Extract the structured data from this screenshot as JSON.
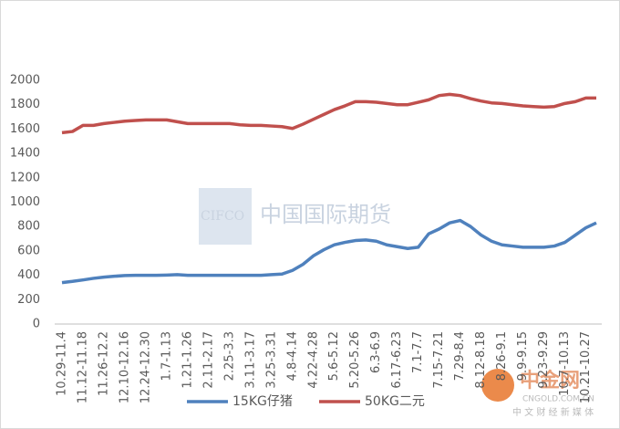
{
  "chart_data": {
    "type": "line",
    "categories": [
      "10.29-11.4",
      null,
      "11.12-11.18",
      null,
      "11.26-12.2",
      null,
      "12.10-12.16",
      null,
      "12.24-12.30",
      null,
      "1.7-1.13",
      null,
      "1.21-1.26",
      null,
      "2.11-2.17",
      null,
      "2.25-3.3",
      null,
      "3.11-3.17",
      null,
      "3.25-3.31",
      null,
      "4.8-4.14",
      null,
      "4.22-4.28",
      null,
      "5.6-5.12",
      null,
      "5.20-5.26",
      null,
      "6.3-6.9",
      null,
      "6.17-6.23",
      null,
      "7.1-7.7",
      null,
      "7.15-7.21",
      null,
      "7.29-8.4",
      null,
      "8.12-8.18",
      null,
      "8.26-9.1",
      null,
      "9.9-9.15",
      null,
      "9.23-9.29",
      null,
      "10.7-10.13",
      null,
      "10.21-10.27",
      null
    ],
    "series": [
      {
        "name": "15KG仔猪",
        "color": "#4f81bd",
        "values": [
          340,
          350,
          362,
          375,
          385,
          392,
          398,
          400,
          400,
          400,
          402,
          405,
          400,
          400,
          400,
          400,
          400,
          400,
          400,
          400,
          405,
          410,
          440,
          490,
          560,
          610,
          650,
          670,
          685,
          690,
          680,
          650,
          635,
          620,
          630,
          740,
          780,
          830,
          850,
          800,
          730,
          680,
          650,
          640,
          630,
          630,
          630,
          640,
          670,
          730,
          790,
          830
        ]
      },
      {
        "name": "50KG二元",
        "color": "#c0504d",
        "values": [
          1570,
          1580,
          1630,
          1630,
          1645,
          1655,
          1665,
          1670,
          1675,
          1675,
          1675,
          1660,
          1645,
          1645,
          1645,
          1645,
          1645,
          1635,
          1630,
          1630,
          1625,
          1620,
          1605,
          1640,
          1680,
          1720,
          1760,
          1790,
          1825,
          1825,
          1820,
          1810,
          1800,
          1800,
          1820,
          1840,
          1875,
          1885,
          1875,
          1850,
          1830,
          1815,
          1810,
          1800,
          1790,
          1785,
          1780,
          1785,
          1810,
          1825,
          1855,
          1855
        ]
      }
    ],
    "ylim": [
      0,
      2000
    ],
    "yticks": [
      0,
      200,
      400,
      600,
      800,
      1000,
      1200,
      1400,
      1600,
      1800,
      2000
    ],
    "grid": false,
    "legend": "bottom",
    "watermark": {
      "brand": "CIFCO",
      "name": "中国国际期货"
    },
    "logo": {
      "name": "中金网",
      "site": "CNGOLD.COM.CN",
      "slogan": "中 文 财 经 新 媒 体"
    }
  }
}
